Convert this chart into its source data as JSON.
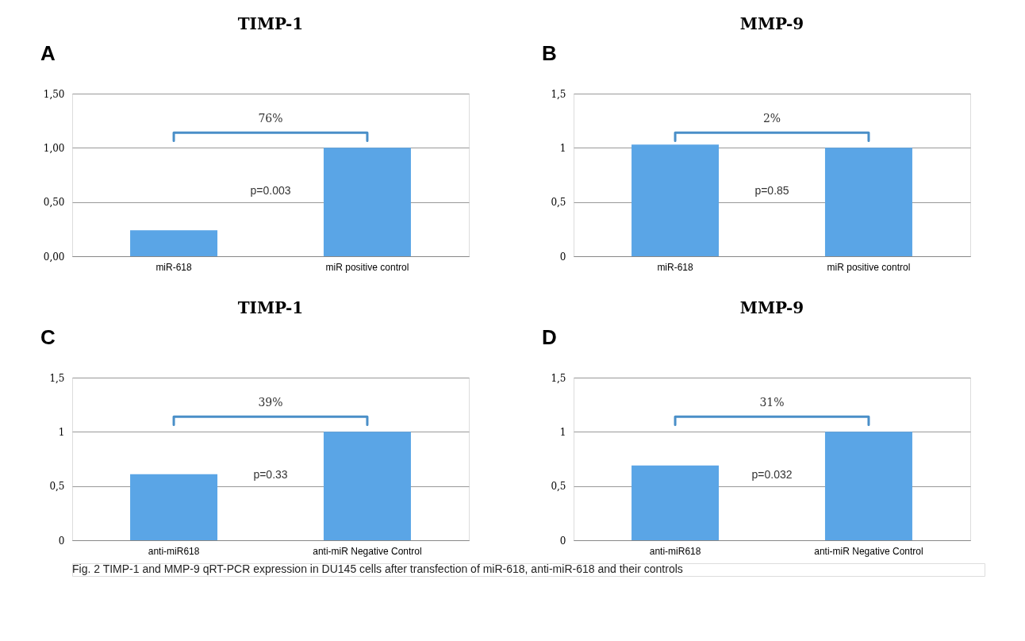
{
  "chart_data": [
    {
      "type": "bar",
      "title": "TIMP-1",
      "categories": [
        "miR-618",
        "miR positive control"
      ],
      "values": [
        0.24,
        1.0
      ],
      "color": "#5aa5e6",
      "ylim": [
        0,
        1.5
      ],
      "yticks": [
        {
          "value": 0,
          "label": "0,00"
        },
        {
          "value": 0.5,
          "label": "0,50"
        },
        {
          "value": 1,
          "label": "1,00"
        },
        {
          "value": 1.5,
          "label": "1,50"
        }
      ],
      "grid": "y",
      "legend": false,
      "annotations": [
        "A",
        "76%",
        "p=0.003"
      ]
    },
    {
      "type": "bar",
      "title": "MMP-9",
      "categories": [
        "miR-618",
        "miR positive control"
      ],
      "values": [
        1.03,
        1.0
      ],
      "color": "#5aa5e6",
      "ylim": [
        0,
        1.5
      ],
      "yticks": [
        0,
        {
          "value": 0.5,
          "label": "0,5"
        },
        1,
        {
          "value": 1.5,
          "label": "1,5"
        }
      ],
      "grid": "y",
      "legend": false,
      "annotations": [
        "B",
        "2%",
        "p=0.85"
      ]
    },
    {
      "type": "bar",
      "title": "TIMP-1",
      "categories": [
        "anti-miR618",
        "anti-miR Negative Control"
      ],
      "values": [
        0.61,
        1.0
      ],
      "color": "#5aa5e6",
      "ylim": [
        0,
        1.5
      ],
      "yticks": [
        0,
        {
          "value": 0.5,
          "label": "0,5"
        },
        1,
        {
          "value": 1.5,
          "label": "1,5"
        }
      ],
      "grid": "y",
      "legend": false,
      "annotations": [
        "C",
        "39%",
        "p=0.33"
      ]
    },
    {
      "type": "bar",
      "title": "MMP-9",
      "categories": [
        "anti-miR618",
        "anti-miR Negative Control"
      ],
      "values": [
        0.69,
        1.0
      ],
      "color": "#5aa5e6",
      "ylim": [
        0,
        1.5
      ],
      "yticks": [
        0,
        {
          "value": 0.5,
          "label": "0,5"
        },
        1,
        {
          "value": 1.5,
          "label": "1,5"
        }
      ],
      "grid": "y",
      "legend": false,
      "annotations": [
        "D",
        "31%",
        "p=0.032",
        "Fig. 2 TIMP-1 and MMP-9 qRT-PCR expression in DU145 cells after transfection of miR-618, anti-miR-618 and their controls"
      ]
    }
  ]
}
